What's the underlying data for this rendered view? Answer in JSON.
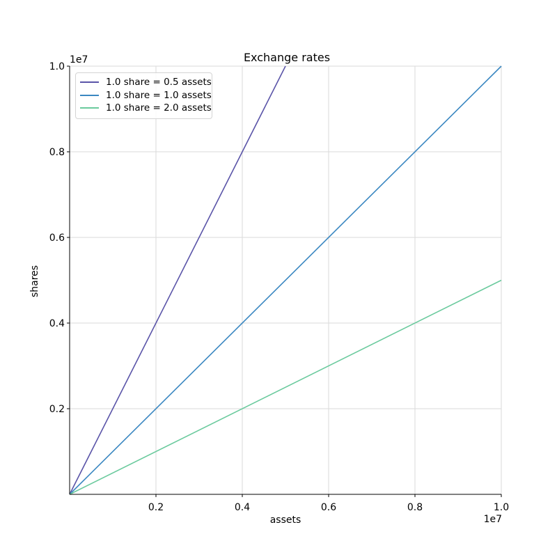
{
  "figure": {
    "background_color": "#ffffff",
    "text_color": "#000000",
    "spine_color": "#000000"
  },
  "chart_data": {
    "type": "line",
    "title": "Exchange rates",
    "xlabel": "assets",
    "ylabel": "shares",
    "x_offset_text": "1e7",
    "y_offset_text": "1e7",
    "xlim": [
      0,
      10000000
    ],
    "ylim": [
      0,
      10000000
    ],
    "grid": true,
    "grid_color": "#dadada",
    "legend_position": "upper left",
    "x_ticks": [
      {
        "label": "0.2",
        "value": 2000000
      },
      {
        "label": "0.4",
        "value": 4000000
      },
      {
        "label": "0.6",
        "value": 6000000
      },
      {
        "label": "0.8",
        "value": 8000000
      },
      {
        "label": "1.0",
        "value": 10000000
      }
    ],
    "y_ticks": [
      {
        "label": "0.2",
        "value": 2000000
      },
      {
        "label": "0.4",
        "value": 4000000
      },
      {
        "label": "0.6",
        "value": 6000000
      },
      {
        "label": "0.8",
        "value": 8000000
      },
      {
        "label": "1.0",
        "value": 10000000
      }
    ],
    "series": [
      {
        "name": "1.0 share = 0.5 assets",
        "color": "#5a54a8",
        "slope_shares_per_asset": 2.0,
        "points": [
          [
            0,
            0
          ],
          [
            5000000,
            10000000
          ]
        ]
      },
      {
        "name": "1.0 share = 1.0 assets",
        "color": "#3a87c1",
        "slope_shares_per_asset": 1.0,
        "points": [
          [
            0,
            0
          ],
          [
            10000000,
            10000000
          ]
        ]
      },
      {
        "name": "1.0 share = 2.0 assets",
        "color": "#6aca9d",
        "slope_shares_per_asset": 0.5,
        "points": [
          [
            0,
            0
          ],
          [
            10000000,
            5000000
          ]
        ]
      }
    ]
  }
}
